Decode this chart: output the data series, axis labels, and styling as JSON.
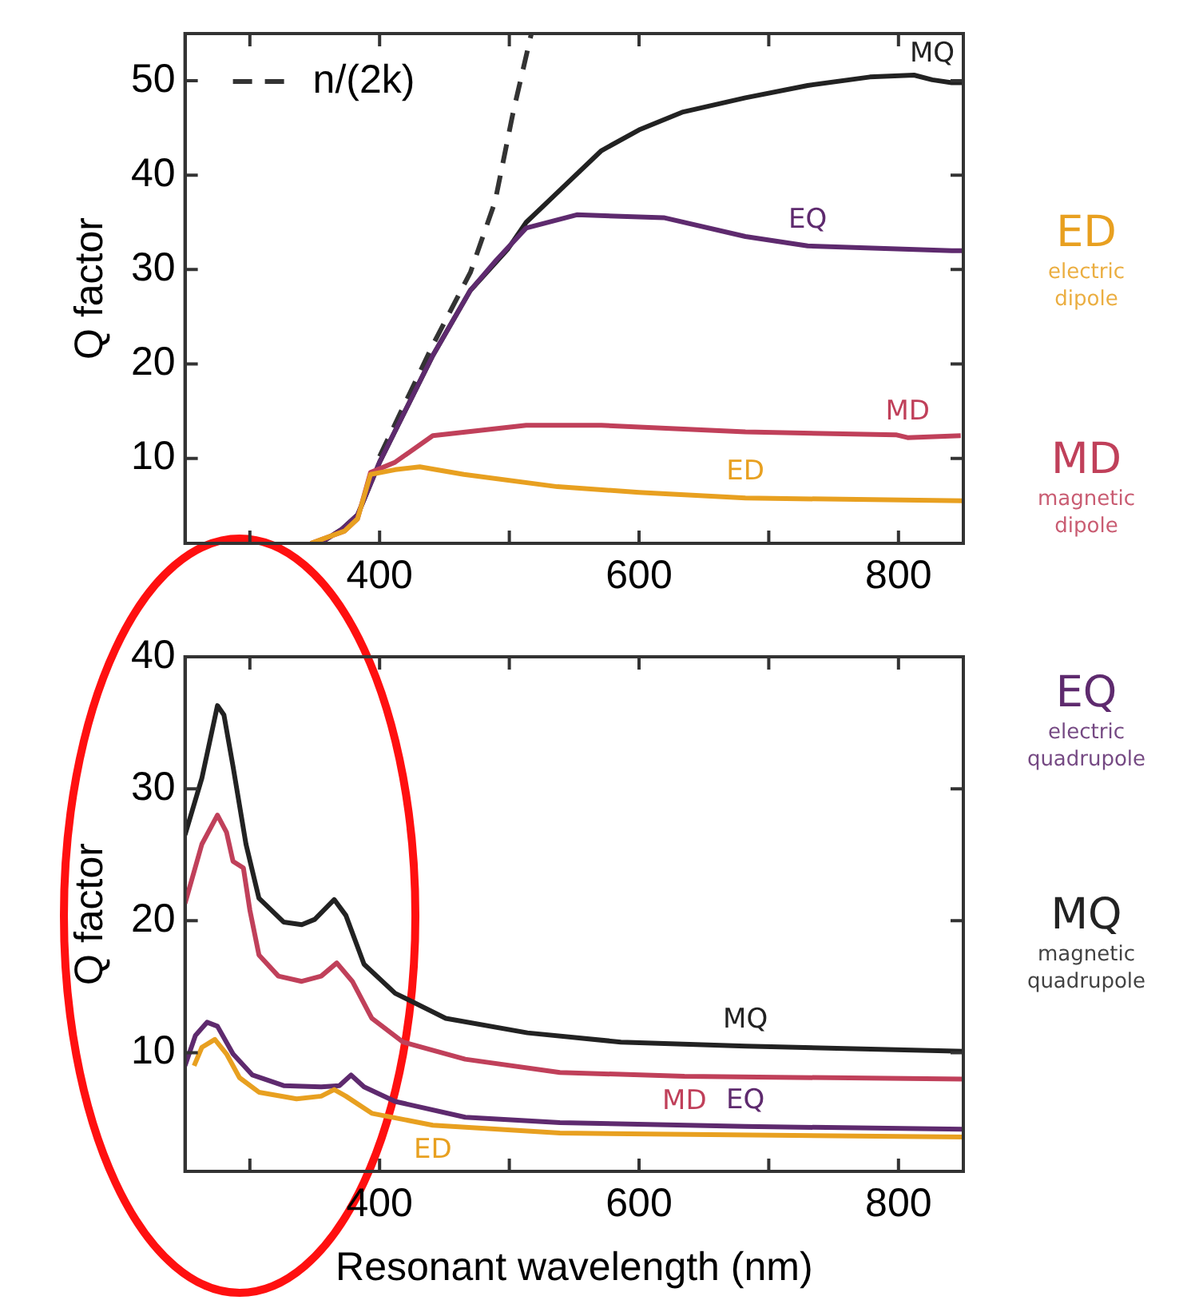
{
  "chart_data": [
    {
      "type": "line",
      "ylabel": "Q factor",
      "xlim": [
        250,
        850
      ],
      "ylim": [
        1,
        55
      ],
      "xticks": [
        {
          "value": 300,
          "label": null
        },
        400,
        {
          "value": 500,
          "label": null
        },
        600,
        {
          "value": 700,
          "label": null
        },
        800
      ],
      "yticks": [
        10,
        20,
        30,
        40,
        50
      ],
      "grid": false,
      "legend": "top left",
      "series": [
        {
          "color": "#e8a020",
          "x": [
            347,
            373,
            383,
            393,
            412,
            431,
            465,
            537,
            600,
            682,
            850
          ],
          "values": [
            1,
            2.3,
            3.6,
            8.3,
            8.8,
            9.1,
            8.3,
            7.0,
            6.4,
            5.8,
            5.5
          ]
        },
        {
          "color": "#c0405a",
          "x": [
            347,
            373,
            383,
            393,
            412,
            441,
            513,
            571,
            682,
            798,
            807,
            848
          ],
          "values": [
            1,
            2.3,
            3.6,
            8.5,
            9.6,
            12.4,
            13.5,
            13.5,
            12.8,
            12.5,
            12.2,
            12.4
          ]
        },
        {
          "color": "#5e2a6e",
          "x": [
            354,
            371,
            383,
            400,
            441,
            470,
            490,
            513,
            552,
            619,
            682,
            730,
            841,
            850
          ],
          "values": [
            1,
            2.5,
            4,
            9.6,
            20.9,
            27.8,
            31,
            34.4,
            35.8,
            35.5,
            33.5,
            32.5,
            32,
            32
          ]
        },
        {
          "color": "#222222",
          "x": [
            354,
            371,
            383,
            400,
            441,
            470,
            499,
            513,
            542,
            571,
            600,
            634,
            682,
            730,
            778,
            812,
            826,
            841,
            850
          ],
          "values": [
            1,
            2.5,
            4,
            9.6,
            20.9,
            27.8,
            32.2,
            35,
            38.8,
            42.6,
            44.8,
            46.7,
            48.2,
            49.5,
            50.4,
            50.6,
            50.1,
            49.8,
            49.8
          ]
        },
        {
          "name": "n/(2k)",
          "color": "#333333",
          "line_style": "dashed",
          "x": [
            400,
            441,
            470,
            489,
            503,
            517
          ],
          "values": [
            10.2,
            22,
            29.7,
            37.2,
            46.7,
            55
          ]
        }
      ],
      "annotations": [
        "ED",
        "MD",
        "EQ",
        "MQ"
      ]
    },
    {
      "type": "line",
      "xlabel": "Resonant wavelength (nm)",
      "ylabel": "Q factor",
      "xlim": [
        250,
        850
      ],
      "ylim": [
        1,
        40
      ],
      "xticks": [
        {
          "value": 300,
          "label": null
        },
        400,
        {
          "value": 500,
          "label": null
        },
        600,
        {
          "value": 700,
          "label": null
        },
        800
      ],
      "yticks": [
        10,
        20,
        30,
        40
      ],
      "grid": false,
      "series": [
        {
          "color": "#e8a020",
          "x": [
            257,
            263,
            273,
            282,
            292,
            307,
            336,
            355,
            365,
            374,
            394,
            441,
            539,
            850
          ],
          "values": [
            9,
            10.4,
            11.0,
            9.9,
            8.1,
            7,
            6.5,
            6.7,
            7.2,
            6.7,
            5.4,
            4.5,
            3.9,
            3.6
          ]
        },
        {
          "color": "#c0405a",
          "x": [
            250,
            263,
            275,
            282,
            287,
            295,
            300,
            307,
            322,
            340,
            355,
            367,
            379,
            394,
            418,
            466,
            539,
            635,
            850
          ],
          "values": [
            21.3,
            25.8,
            28,
            26.7,
            24.5,
            24,
            20.8,
            17.4,
            15.8,
            15.4,
            15.8,
            16.8,
            15.4,
            12.6,
            10.8,
            9.5,
            8.5,
            8.2,
            8
          ]
        },
        {
          "color": "#5e2a6e",
          "x": [
            250,
            258,
            267,
            275,
            287,
            302,
            326,
            355,
            369,
            378,
            388,
            412,
            466,
            539,
            682,
            850
          ],
          "values": [
            9,
            11.3,
            12.3,
            12,
            9.9,
            8.3,
            7.5,
            7.4,
            7.5,
            8.3,
            7.4,
            6.3,
            5.1,
            4.7,
            4.4,
            4.2
          ]
        },
        {
          "color": "#222222",
          "x": [
            250,
            263,
            275,
            280,
            287,
            297,
            307,
            326,
            340,
            350,
            365,
            374,
            388,
            412,
            451,
            514,
            586,
            682,
            850
          ],
          "values": [
            26.5,
            30.8,
            36.3,
            35.6,
            31.7,
            25.8,
            21.7,
            19.9,
            19.7,
            20.1,
            21.6,
            20.4,
            16.7,
            14.5,
            12.6,
            11.5,
            10.8,
            10.5,
            10.1
          ]
        }
      ],
      "annotations": [
        "ED",
        "MD",
        "EQ",
        "MQ"
      ]
    },
    {
      "type": "other",
      "categories": [
        "ED",
        "MD",
        "EQ",
        "MQ"
      ],
      "colors": [
        "#e8a020",
        "#c0405a",
        "#5e2a6e",
        "#222222"
      ],
      "annotations": [
        "electric dipole",
        "magnetic dipole",
        "electric quadrupole",
        "magnetic quadrupole"
      ]
    }
  ]
}
